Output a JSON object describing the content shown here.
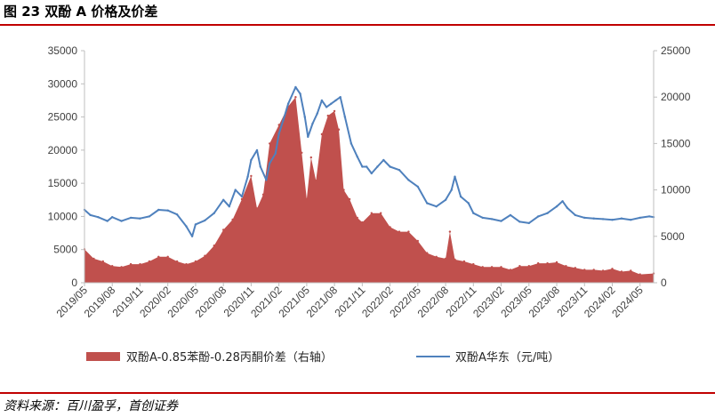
{
  "header": {
    "title": "图 23 双酚 A 价格及价差"
  },
  "footer": {
    "source": "资料来源：百川盈孚，首创证券"
  },
  "colors": {
    "rule": "#c00000",
    "spread_fill": "#c0504d",
    "price_line": "#4f81bd",
    "axis": "#bfbfbf"
  },
  "chart_data": {
    "type": "bar+line",
    "grid": false,
    "legend_position": "bottom",
    "left_axis": {
      "ylim": [
        0,
        35000
      ],
      "ticks": [
        "0",
        "5000",
        "10000",
        "15000",
        "20000",
        "25000",
        "30000",
        "35000"
      ]
    },
    "right_axis": {
      "ylim": [
        0,
        25000
      ],
      "ticks": [
        "0",
        "5000",
        "10000",
        "15000",
        "20000",
        "25000"
      ]
    },
    "x_ticks": [
      "2019/05",
      "2019/08",
      "2019/11",
      "2020/02",
      "2020/05",
      "2020/08",
      "2020/11",
      "2021/02",
      "2021/05",
      "2021/08",
      "2021/11",
      "2022/02",
      "2022/05",
      "2022/08",
      "2022/11",
      "2023/02",
      "2023/05",
      "2023/08",
      "2023/11",
      "2024/02",
      "2024/05"
    ],
    "series": [
      {
        "name": "双酚A-0.85苯酚-0.28丙酮价差（右轴）",
        "kind": "area",
        "axis": "right",
        "x": [
          "2019/05/01",
          "2019/06/01",
          "2019/07/01",
          "2019/08/01",
          "2019/09/01",
          "2019/10/01",
          "2019/11/01",
          "2019/12/01",
          "2020/01/01",
          "2020/02/01",
          "2020/03/01",
          "2020/04/01",
          "2020/05/01",
          "2020/06/01",
          "2020/07/01",
          "2020/08/01",
          "2020/09/01",
          "2020/10/01",
          "2020/11/01",
          "2020/11/20",
          "2020/12/10",
          "2021/01/01",
          "2021/02/01",
          "2021/03/01",
          "2021/03/25",
          "2021/04/15",
          "2021/05/01",
          "2021/05/15",
          "2021/06/01",
          "2021/06/20",
          "2021/07/10",
          "2021/08/01",
          "2021/08/15",
          "2021/09/01",
          "2021/09/20",
          "2021/10/15",
          "2021/11/01",
          "2021/12/01",
          "2022/01/01",
          "2022/02/01",
          "2022/03/01",
          "2022/04/01",
          "2022/05/01",
          "2022/06/01",
          "2022/07/01",
          "2022/08/01",
          "2022/08/15",
          "2022/09/01",
          "2022/10/01",
          "2022/11/01",
          "2022/12/01",
          "2023/01/01",
          "2023/02/01",
          "2023/03/01",
          "2023/04/01",
          "2023/05/01",
          "2023/06/01",
          "2023/07/01",
          "2023/08/01",
          "2023/09/01",
          "2023/10/01",
          "2023/11/01",
          "2023/12/01",
          "2024/01/01",
          "2024/02/01",
          "2024/03/01",
          "2024/04/01",
          "2024/05/01",
          "2024/06/15"
        ],
        "values": [
          3600,
          2600,
          2300,
          1800,
          1700,
          2000,
          2000,
          2300,
          2800,
          2800,
          2300,
          2000,
          2300,
          2900,
          4000,
          5700,
          6800,
          9000,
          11500,
          8000,
          9500,
          15000,
          17000,
          19000,
          20000,
          14000,
          9000,
          13500,
          11000,
          16000,
          18000,
          18500,
          16500,
          10000,
          9000,
          7000,
          6500,
          7500,
          7500,
          6000,
          5500,
          5500,
          4500,
          3200,
          2800,
          2600,
          5500,
          2500,
          2300,
          2000,
          1700,
          1700,
          1700,
          1400,
          1800,
          1800,
          2100,
          2100,
          2200,
          1800,
          1600,
          1400,
          1400,
          1300,
          1500,
          1200,
          1300,
          900,
          1000
        ]
      },
      {
        "name": "双酚A华东（元/吨）",
        "kind": "line",
        "axis": "left",
        "x": [
          "2019/05/01",
          "2019/05/20",
          "2019/06/15",
          "2019/07/15",
          "2019/08/01",
          "2019/09/01",
          "2019/10/01",
          "2019/11/01",
          "2019/12/01",
          "2020/01/01",
          "2020/02/01",
          "2020/03/01",
          "2020/04/01",
          "2020/04/20",
          "2020/05/01",
          "2020/06/01",
          "2020/07/01",
          "2020/08/01",
          "2020/08/20",
          "2020/09/10",
          "2020/10/01",
          "2020/10/20",
          "2020/11/01",
          "2020/11/20",
          "2020/12/01",
          "2020/12/20",
          "2021/01/01",
          "2021/01/20",
          "2021/02/01",
          "2021/02/15",
          "2021/03/01",
          "2021/03/25",
          "2021/04/10",
          "2021/04/25",
          "2021/05/05",
          "2021/05/20",
          "2021/06/05",
          "2021/06/20",
          "2021/07/05",
          "2021/07/20",
          "2021/08/05",
          "2021/08/20",
          "2021/09/05",
          "2021/09/25",
          "2021/10/15",
          "2021/11/01",
          "2021/11/15",
          "2021/12/01",
          "2021/12/20",
          "2022/01/10",
          "2022/02/01",
          "2022/03/01",
          "2022/04/01",
          "2022/05/01",
          "2022/06/01",
          "2022/07/01",
          "2022/08/01",
          "2022/08/20",
          "2022/09/01",
          "2022/09/20",
          "2022/10/15",
          "2022/11/01",
          "2022/12/01",
          "2023/01/01",
          "2023/02/01",
          "2023/03/01",
          "2023/04/01",
          "2023/05/01",
          "2023/06/01",
          "2023/07/01",
          "2023/08/01",
          "2023/08/20",
          "2023/09/05",
          "2023/10/01",
          "2023/11/01",
          "2023/12/01",
          "2024/01/01",
          "2024/02/01",
          "2024/03/01",
          "2024/04/01",
          "2024/05/01",
          "2024/06/01",
          "2024/06/15"
        ],
        "values": [
          11000,
          10200,
          9900,
          9300,
          9900,
          9300,
          9800,
          9700,
          10000,
          11000,
          10900,
          10300,
          8500,
          7000,
          8800,
          9400,
          10500,
          12500,
          11500,
          14000,
          13000,
          16000,
          18500,
          20000,
          17500,
          15500,
          18000,
          19500,
          22500,
          24500,
          27000,
          29500,
          28500,
          25000,
          22000,
          24000,
          25500,
          27500,
          26500,
          27000,
          27500,
          28000,
          25000,
          21000,
          19000,
          17500,
          17500,
          16500,
          17500,
          18500,
          17500,
          17000,
          15500,
          14500,
          12000,
          11500,
          12500,
          14000,
          16000,
          13000,
          12000,
          10500,
          9800,
          9600,
          9300,
          10200,
          9200,
          9000,
          10000,
          10500,
          11500,
          12300,
          11300,
          10200,
          9800,
          9700,
          9600,
          9500,
          9700,
          9500,
          9800,
          10000,
          9900
        ]
      }
    ]
  }
}
